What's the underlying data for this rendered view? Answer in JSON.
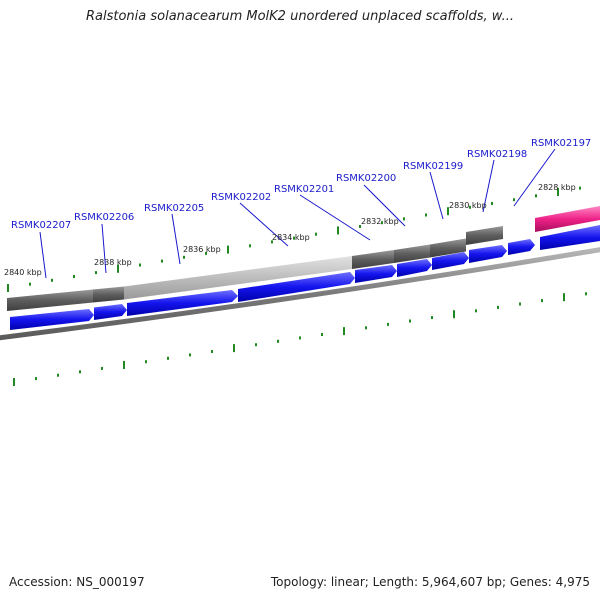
{
  "title": "Ralstonia solanacearum MolK2 unordered unplaced scaffolds, w...",
  "footer": {
    "accession": "Accession: NS_000197",
    "stats": "Topology: linear; Length: 5,964,607 bp; Genes: 4,975"
  },
  "kbp_labels": [
    "2840 kbp",
    "2838 kbp",
    "2836 kbp",
    "2834 kbp",
    "2832 kbp",
    "2830 kbp",
    "2828 kbp"
  ],
  "genes": [
    "RSMK02207",
    "RSMK02206",
    "RSMK02205",
    "RSMK02202",
    "RSMK02201",
    "RSMK02200",
    "RSMK02199",
    "RSMK02198",
    "RSMK02197"
  ],
  "colors": {
    "gene_label": "#1a1acc",
    "forward_gene": "#1a1aee",
    "contig_dark": "#666666",
    "contig_light": "#bbbbbb",
    "highlight": "#ee2288",
    "tick": "#228822",
    "backbone": "#888888"
  }
}
